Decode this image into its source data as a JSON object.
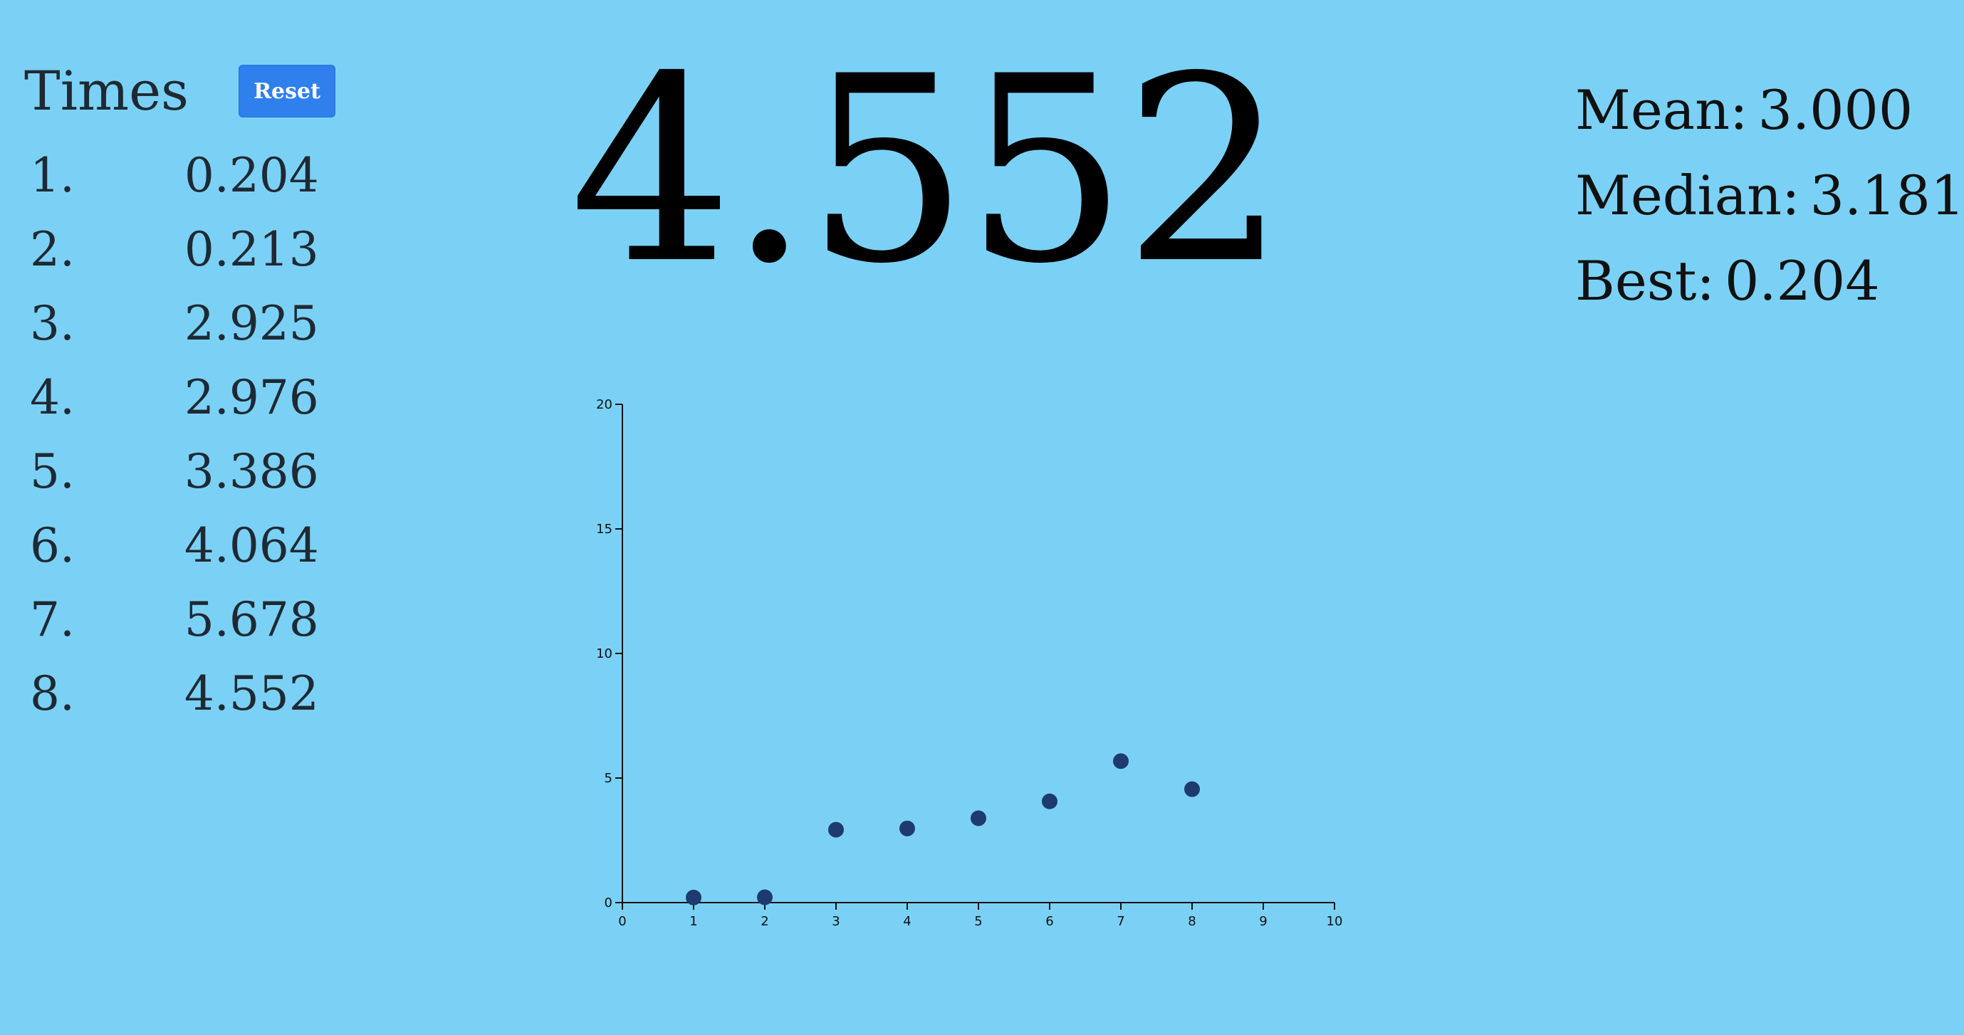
{
  "times_panel": {
    "title": "Times",
    "reset_label": "Reset",
    "times": [
      {
        "index": "1.",
        "value": "0.204"
      },
      {
        "index": "2.",
        "value": "0.213"
      },
      {
        "index": "3.",
        "value": "2.925"
      },
      {
        "index": "4.",
        "value": "2.976"
      },
      {
        "index": "5.",
        "value": "3.386"
      },
      {
        "index": "6.",
        "value": "4.064"
      },
      {
        "index": "7.",
        "value": "5.678"
      },
      {
        "index": "8.",
        "value": "4.552"
      }
    ]
  },
  "current_time": "4.552",
  "stats": {
    "mean_label": "Mean:",
    "mean_value": "3.000",
    "median_label": "Median:",
    "median_value": "3.181",
    "best_label": "Best:",
    "best_value": "0.204"
  },
  "colors": {
    "background": "#7bd1f5",
    "button": "#2f80ed",
    "point": "#1f3a6e"
  },
  "chart_data": {
    "type": "scatter",
    "x": [
      1,
      2,
      3,
      4,
      5,
      6,
      7,
      8
    ],
    "y": [
      0.204,
      0.213,
      2.925,
      2.976,
      3.386,
      4.064,
      5.678,
      4.552
    ],
    "xlim": [
      0,
      10
    ],
    "ylim": [
      0,
      20
    ],
    "xticks": [
      0,
      1,
      2,
      3,
      4,
      5,
      6,
      7,
      8,
      9,
      10
    ],
    "yticks": [
      0,
      5,
      10,
      15,
      20
    ],
    "grid": false,
    "title": "",
    "xlabel": "",
    "ylabel": ""
  }
}
